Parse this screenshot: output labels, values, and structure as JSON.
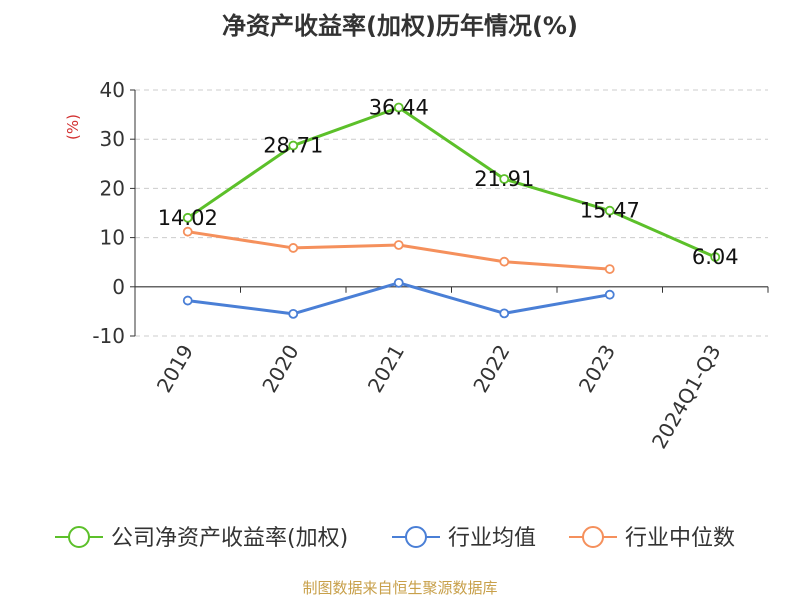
{
  "title": "净资产收益率(加权)历年情况(%)",
  "source_note": "制图数据来自恒生聚源数据库",
  "colors": {
    "company": "#5cc02a",
    "industry_avg": "#4a7fd6",
    "industry_median": "#f5905c",
    "axis": "#333333",
    "grid": "#cccccc",
    "unit_label": "#d23030",
    "text": "#333333"
  },
  "chart_data": {
    "type": "line",
    "title": "净资产收益率(加权)历年情况(%)",
    "ylabel": "(%)",
    "xlabel": "",
    "categories": [
      "2019",
      "2020",
      "2021",
      "2022",
      "2023",
      "2024Q1-Q3"
    ],
    "ylim": [
      -10,
      40
    ],
    "yticks": [
      -10,
      0,
      10,
      20,
      30,
      40
    ],
    "grid": true,
    "legend_position": "bottom",
    "series": [
      {
        "name": "公司净资产收益率(加权)",
        "key": "company",
        "values": [
          14.02,
          28.71,
          36.44,
          21.91,
          15.47,
          6.04
        ],
        "labels": [
          "14.02",
          "28.71",
          "36.44",
          "21.91",
          "15.47",
          "6.04"
        ]
      },
      {
        "name": "行业均值",
        "key": "industry_avg",
        "values": [
          -2.8,
          -5.5,
          0.8,
          -5.4,
          -1.6,
          null
        ]
      },
      {
        "name": "行业中位数",
        "key": "industry_median",
        "values": [
          11.2,
          7.9,
          8.5,
          5.1,
          3.6,
          null
        ]
      }
    ]
  }
}
